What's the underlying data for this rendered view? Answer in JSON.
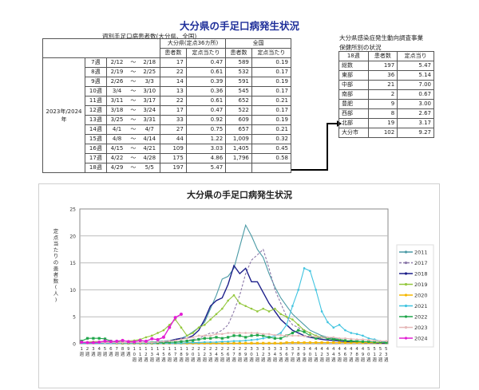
{
  "page_title": "大分県の手足口病発生状況",
  "weekly": {
    "caption": "週別手足口病患者数(大分県、全国)",
    "header_oita": "大分県(定点36カ所)",
    "header_national": "全国",
    "col_patients": "患者数",
    "col_per_site": "定点当たり",
    "year_label": "2023年/2024年",
    "tilde": "～",
    "rows": [
      {
        "week": "7週",
        "from": "2/12",
        "to": "2/18",
        "oita_n": "17",
        "oita_p": "0.47",
        "nat_n": "589",
        "nat_p": "0.19"
      },
      {
        "week": "8週",
        "from": "2/19",
        "to": "2/25",
        "oita_n": "22",
        "oita_p": "0.61",
        "nat_n": "532",
        "nat_p": "0.17"
      },
      {
        "week": "9週",
        "from": "2/26",
        "to": "3/3",
        "oita_n": "14",
        "oita_p": "0.39",
        "nat_n": "591",
        "nat_p": "0.19"
      },
      {
        "week": "10週",
        "from": "3/4",
        "to": "3/10",
        "oita_n": "13",
        "oita_p": "0.36",
        "nat_n": "545",
        "nat_p": "0.17"
      },
      {
        "week": "11週",
        "from": "3/11",
        "to": "3/17",
        "oita_n": "22",
        "oita_p": "0.61",
        "nat_n": "652",
        "nat_p": "0.21"
      },
      {
        "week": "12週",
        "from": "3/18",
        "to": "3/24",
        "oita_n": "17",
        "oita_p": "0.47",
        "nat_n": "522",
        "nat_p": "0.17"
      },
      {
        "week": "13週",
        "from": "3/25",
        "to": "3/31",
        "oita_n": "33",
        "oita_p": "0.92",
        "nat_n": "609",
        "nat_p": "0.19"
      },
      {
        "week": "14週",
        "from": "4/1",
        "to": "4/7",
        "oita_n": "27",
        "oita_p": "0.75",
        "nat_n": "657",
        "nat_p": "0.21"
      },
      {
        "week": "15週",
        "from": "4/8",
        "to": "4/14",
        "oita_n": "44",
        "oita_p": "1.22",
        "nat_n": "1,009",
        "nat_p": "0.32"
      },
      {
        "week": "16週",
        "from": "4/15",
        "to": "4/21",
        "oita_n": "109",
        "oita_p": "3.03",
        "nat_n": "1,405",
        "nat_p": "0.45"
      },
      {
        "week": "17週",
        "from": "4/22",
        "to": "4/28",
        "oita_n": "175",
        "oita_p": "4.86",
        "nat_n": "1,796",
        "nat_p": "0.58"
      },
      {
        "week": "18週",
        "from": "4/29",
        "to": "5/5",
        "oita_n": "197",
        "oita_p": "5.47",
        "nat_n": "",
        "nat_p": ""
      }
    ]
  },
  "regional": {
    "caption_line1": "大分県感染症発生動向調査事業",
    "caption_line2": "保健所別の状況",
    "header_week": "18週",
    "header_patients": "患者数",
    "header_per_site": "定点当り",
    "rows": [
      {
        "area": "総数",
        "n": "197",
        "p": "5.47"
      },
      {
        "area": "東部",
        "n": "36",
        "p": "5.14"
      },
      {
        "area": "中部",
        "n": "21",
        "p": "7.00"
      },
      {
        "area": "南部",
        "n": "2",
        "p": "0.67"
      },
      {
        "area": "豊肥",
        "n": "9",
        "p": "3.00"
      },
      {
        "area": "西部",
        "n": "8",
        "p": "2.67"
      },
      {
        "area": "北部",
        "n": "19",
        "p": "3.17"
      },
      {
        "area": "大分市",
        "n": "102",
        "p": "9.27"
      }
    ]
  },
  "chart_data": {
    "type": "line",
    "title": "大分県の手足口病発生状況",
    "xlabel": "",
    "ylabel": "定点当たりの患者数(人)",
    "ylim": [
      0,
      25
    ],
    "yticks": [
      0,
      5,
      10,
      15,
      20,
      25
    ],
    "grid": true,
    "legend_position": "right",
    "x": [
      "1週",
      "2週",
      "3週",
      "4週",
      "5週",
      "6週",
      "7週",
      "8週",
      "9週",
      "10週",
      "11週",
      "12週",
      "13週",
      "14週",
      "15週",
      "16週",
      "17週",
      "18週",
      "19週",
      "20週",
      "21週",
      "22週",
      "23週",
      "24週",
      "25週",
      "26週",
      "27週",
      "28週",
      "29週",
      "30週",
      "31週",
      "32週",
      "33週",
      "34週",
      "35週",
      "36週",
      "37週",
      "38週",
      "39週",
      "40週",
      "41週",
      "42週",
      "43週",
      "44週",
      "45週",
      "46週",
      "47週",
      "48週",
      "49週",
      "50週",
      "51週",
      "52週",
      "53週"
    ],
    "series": [
      {
        "name": "2011",
        "color": "#4a9aa5",
        "values": [
          0.1,
          0.1,
          0.1,
          0.1,
          0.1,
          0.1,
          0.1,
          0.1,
          0.2,
          0.2,
          0.2,
          0.3,
          0.3,
          0.4,
          0.5,
          0.6,
          0.8,
          1.0,
          1.5,
          2.2,
          3.0,
          4.0,
          6.5,
          9.0,
          12.0,
          12.5,
          14.0,
          18.0,
          22.0,
          20.0,
          17.5,
          16.0,
          13.0,
          10.5,
          8.5,
          7.0,
          5.5,
          4.5,
          3.5,
          2.5,
          2.0,
          1.5,
          1.2,
          1.0,
          0.8,
          0.6,
          0.5,
          0.4,
          0.3,
          0.3,
          0.2,
          0.2,
          0.2
        ]
      },
      {
        "name": "2017",
        "color": "#8b78a8",
        "dashed": true,
        "values": [
          0.1,
          0.1,
          0.1,
          0.1,
          0.1,
          0.1,
          0.1,
          0.1,
          0.1,
          0.1,
          0.1,
          0.1,
          0.2,
          0.2,
          0.2,
          0.3,
          0.3,
          0.4,
          0.6,
          0.8,
          1.0,
          1.5,
          2.0,
          2.0,
          2.5,
          3.5,
          6.0,
          9.0,
          13.0,
          15.5,
          16.5,
          17.5,
          14.0,
          10.0,
          7.5,
          5.0,
          3.5,
          3.0,
          2.5,
          2.0,
          1.5,
          1.2,
          1.0,
          0.8,
          0.7,
          0.6,
          0.5,
          0.4,
          0.3,
          0.3,
          0.2,
          0.2,
          0.2
        ]
      },
      {
        "name": "2018",
        "color": "#1c1f8a",
        "values": [
          0.1,
          0.1,
          0.1,
          0.1,
          0.1,
          0.1,
          0.1,
          0.1,
          0.1,
          0.1,
          0.1,
          0.1,
          0.2,
          0.2,
          0.3,
          0.5,
          0.8,
          1.0,
          1.0,
          1.5,
          2.5,
          4.5,
          7.0,
          8.0,
          8.5,
          11.0,
          14.5,
          13.0,
          14.0,
          11.5,
          11.5,
          9.5,
          7.5,
          6.0,
          4.5,
          3.5,
          2.5,
          2.0,
          1.5,
          1.2,
          1.0,
          0.8,
          0.7,
          0.6,
          0.5,
          0.4,
          0.3,
          0.3,
          0.2,
          0.2,
          0.2,
          0.1,
          0.1
        ]
      },
      {
        "name": "2019",
        "color": "#94c83d",
        "values": [
          0.3,
          0.3,
          0.4,
          0.4,
          0.4,
          0.4,
          0.4,
          0.5,
          0.5,
          0.6,
          0.8,
          1.2,
          1.5,
          2.0,
          2.5,
          3.5,
          4.5,
          3.0,
          1.5,
          2.0,
          3.0,
          3.5,
          4.5,
          5.5,
          6.5,
          8.0,
          9.0,
          7.5,
          7.0,
          6.5,
          6.0,
          6.5,
          6.0,
          6.5,
          5.5,
          5.0,
          4.5,
          3.5,
          2.5,
          2.0,
          1.5,
          1.2,
          1.0,
          0.8,
          0.7,
          0.6,
          0.5,
          0.4,
          0.3,
          0.3,
          0.3,
          0.2,
          0.2
        ]
      },
      {
        "name": "2020",
        "color": "#f5b700",
        "values": [
          0.2,
          0.2,
          0.2,
          0.2,
          0.2,
          0.2,
          0.1,
          0.1,
          0.1,
          0.1,
          0.1,
          0.1,
          0.1,
          0.1,
          0.1,
          0.1,
          0.1,
          0.1,
          0.1,
          0.1,
          0.1,
          0.1,
          0.1,
          0.1,
          0.1,
          0.1,
          0.1,
          0.1,
          0.1,
          0.1,
          0.1,
          0.1,
          0.1,
          0.1,
          0.1,
          0.2,
          0.2,
          0.2,
          0.2,
          0.2,
          0.2,
          0.2,
          0.2,
          0.2,
          0.2,
          0.2,
          0.2,
          0.2,
          0.2,
          0.2,
          0.2,
          0.2,
          0.2
        ]
      },
      {
        "name": "2021",
        "color": "#41c4e0",
        "values": [
          0.1,
          0.1,
          0.1,
          0.1,
          0.1,
          0.1,
          0.1,
          0.1,
          0.1,
          0.1,
          0.1,
          0.1,
          0.1,
          0.1,
          0.1,
          0.1,
          0.1,
          0.1,
          0.2,
          0.2,
          0.2,
          0.3,
          0.3,
          0.3,
          0.4,
          0.4,
          0.5,
          0.5,
          0.6,
          0.7,
          0.8,
          1.0,
          1.2,
          1.5,
          2.0,
          3.5,
          7.0,
          10.0,
          14.0,
          13.5,
          10.0,
          6.0,
          4.0,
          3.0,
          3.5,
          2.5,
          2.0,
          1.8,
          1.5,
          1.0,
          0.8,
          0.5,
          0.3
        ]
      },
      {
        "name": "2022",
        "color": "#1fa54a",
        "values": [
          0.5,
          1.0,
          1.0,
          1.0,
          0.9,
          0.5,
          0.3,
          0.2,
          0.2,
          0.2,
          0.2,
          0.2,
          0.2,
          0.2,
          0.2,
          0.3,
          0.3,
          0.4,
          0.5,
          0.6,
          0.8,
          1.0,
          1.0,
          1.2,
          1.0,
          1.2,
          1.5,
          1.5,
          1.2,
          1.5,
          1.6,
          1.5,
          1.2,
          1.0,
          1.0,
          1.5,
          2.0,
          2.5,
          2.2,
          1.5,
          1.0,
          1.2,
          1.0,
          0.8,
          0.8,
          0.6,
          0.5,
          0.5,
          0.4,
          0.4,
          0.3,
          0.3,
          0.2
        ]
      },
      {
        "name": "2023",
        "color": "#e6b8b8",
        "values": [
          0.2,
          0.2,
          0.2,
          0.2,
          0.2,
          0.2,
          0.2,
          0.2,
          0.2,
          0.2,
          0.2,
          0.2,
          0.2,
          0.3,
          0.4,
          0.5,
          0.6,
          0.8,
          1.0,
          1.2,
          1.5,
          1.5,
          1.5,
          1.8,
          1.8,
          2.0,
          2.0,
          2.0,
          2.0,
          2.0,
          2.0,
          1.8,
          1.8,
          1.6,
          1.6,
          1.5,
          1.5,
          1.5,
          1.4,
          1.4,
          1.3,
          1.2,
          1.2,
          1.2,
          1.0,
          1.0,
          0.9,
          0.8,
          0.8,
          0.7,
          0.6,
          0.5,
          0.5
        ]
      },
      {
        "name": "2024",
        "color": "#e21fd4",
        "values": [
          0.3,
          0.2,
          0.2,
          0.3,
          0.5,
          0.4,
          0.47,
          0.61,
          0.39,
          0.36,
          0.61,
          0.47,
          0.92,
          0.75,
          1.22,
          3.03,
          4.86,
          5.47
        ]
      }
    ]
  },
  "chart_ui": {
    "ylabel": "定点当たりの患者数(人)",
    "week_suffix": "週"
  }
}
